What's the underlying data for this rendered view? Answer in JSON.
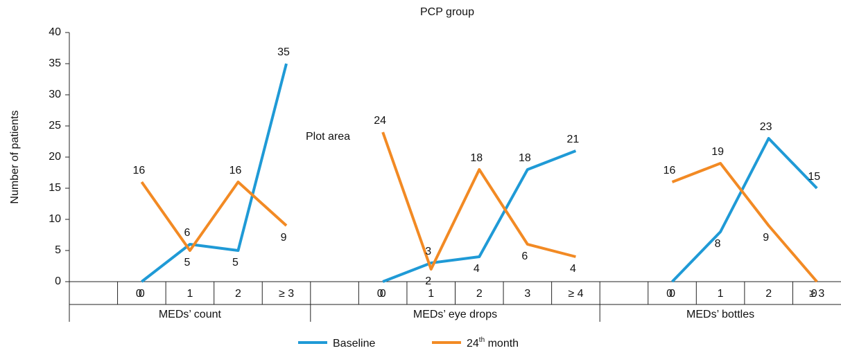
{
  "chart_data": {
    "type": "line",
    "title": "PCP group",
    "y_label": "Number of patients",
    "annotation": "Plot area",
    "categories": [
      null,
      "0",
      "1",
      "2",
      "≥ 3",
      null,
      "0",
      "1",
      "2",
      "3",
      "≥ 4",
      null,
      "0",
      "1",
      "2",
      "≥ 3"
    ],
    "groups": [
      "MEDs’ count",
      "MEDs’ eye drops",
      "MEDs’ bottles"
    ],
    "series": [
      {
        "name": "Baseline",
        "color": "#1f9ad6",
        "values": [
          null,
          0,
          6,
          5,
          35,
          null,
          0,
          3,
          4,
          18,
          21,
          null,
          0,
          8,
          23,
          15
        ]
      },
      {
        "name": "24th month",
        "color": "#f28a24",
        "values": [
          null,
          16,
          5,
          16,
          9,
          null,
          24,
          2,
          18,
          6,
          4,
          null,
          16,
          19,
          9,
          0
        ]
      }
    ],
    "ylim": [
      0,
      40
    ],
    "yticks": [
      0,
      5,
      10,
      15,
      20,
      25,
      30,
      35,
      40
    ],
    "grid": false
  }
}
